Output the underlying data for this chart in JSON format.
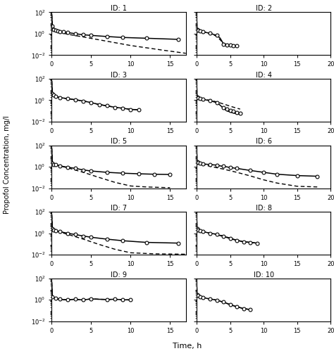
{
  "ylabel": "Propofol Concentration, mg/l",
  "xlabel": "Time, h",
  "subjects": [
    {
      "id": 1,
      "obs_t": [
        0.08,
        0.25,
        0.5,
        0.75,
        1.0,
        1.5,
        2.0,
        3.0,
        4.0,
        5.0,
        7.0,
        9.0,
        12.0,
        16.0
      ],
      "obs_c": [
        5.0,
        2.5,
        2.0,
        1.8,
        1.6,
        1.5,
        1.3,
        1.0,
        0.8,
        0.7,
        0.55,
        0.45,
        0.38,
        0.3
      ],
      "solid_t": [
        0.001,
        0.08,
        0.25,
        0.5,
        0.75,
        1.0,
        1.5,
        2.0,
        3.0,
        4.0,
        5.0,
        7.0,
        9.0,
        12.0,
        16.0
      ],
      "solid_c": [
        60.0,
        5.0,
        2.5,
        2.0,
        1.8,
        1.6,
        1.5,
        1.3,
        1.0,
        0.8,
        0.7,
        0.55,
        0.45,
        0.38,
        0.3
      ],
      "dash_t": [
        0.001,
        0.08,
        0.5,
        1.0,
        2.0,
        4.0,
        7.0,
        10.0,
        14.0,
        17.0
      ],
      "dash_c": [
        60.0,
        5.0,
        2.2,
        1.4,
        0.9,
        0.5,
        0.2,
        0.08,
        0.03,
        0.015
      ],
      "xlim": [
        0,
        17
      ]
    },
    {
      "id": 2,
      "obs_t": [
        0.08,
        0.25,
        0.5,
        1.0,
        2.0,
        3.0,
        4.0,
        4.5,
        5.0,
        5.5,
        6.0
      ],
      "obs_c": [
        2.5,
        2.2,
        1.8,
        1.5,
        1.1,
        0.7,
        0.1,
        0.095,
        0.085,
        0.078,
        0.075
      ],
      "solid_t": [
        0.001,
        0.08,
        0.25,
        0.5,
        1.0,
        2.0,
        3.0,
        3.5,
        4.0,
        4.2,
        4.5,
        4.8,
        5.0,
        5.5,
        6.0
      ],
      "solid_c": [
        50.0,
        2.5,
        2.2,
        1.8,
        1.5,
        1.1,
        0.7,
        0.4,
        0.12,
        0.1,
        0.095,
        0.09,
        0.088,
        0.082,
        0.078
      ],
      "dash_t": [
        0.001,
        0.08,
        0.5,
        1.0,
        2.0,
        3.0,
        4.0,
        4.5,
        5.0,
        5.5,
        6.0
      ],
      "dash_c": [
        50.0,
        2.5,
        2.0,
        1.6,
        1.0,
        0.6,
        0.13,
        0.1,
        0.09,
        0.082,
        0.075
      ],
      "xlim": [
        0,
        20
      ]
    },
    {
      "id": 3,
      "obs_t": [
        0.08,
        0.25,
        0.5,
        1.0,
        2.0,
        3.0,
        4.0,
        5.0,
        6.0,
        7.0,
        8.0,
        9.0,
        10.0,
        11.0
      ],
      "obs_c": [
        4.0,
        3.0,
        2.2,
        1.8,
        1.4,
        1.1,
        0.85,
        0.6,
        0.4,
        0.3,
        0.22,
        0.18,
        0.14,
        0.13
      ],
      "solid_t": [
        0.001,
        0.08,
        0.25,
        0.5,
        1.0,
        2.0,
        3.0,
        4.0,
        5.0,
        6.0,
        7.0,
        8.0,
        9.0,
        10.0,
        11.0
      ],
      "solid_c": [
        60.0,
        4.0,
        3.0,
        2.2,
        1.8,
        1.4,
        1.1,
        0.85,
        0.6,
        0.4,
        0.3,
        0.22,
        0.18,
        0.14,
        0.13
      ],
      "dash_t": [
        0.001,
        0.08,
        0.25,
        0.5,
        1.0,
        2.0,
        3.0,
        4.0,
        5.0,
        6.0,
        7.0,
        8.0,
        9.0,
        10.0,
        11.0
      ],
      "dash_c": [
        60.0,
        4.0,
        3.0,
        2.2,
        1.8,
        1.4,
        1.1,
        0.85,
        0.6,
        0.4,
        0.3,
        0.22,
        0.18,
        0.14,
        0.13
      ],
      "xlim": [
        0,
        17
      ]
    },
    {
      "id": 4,
      "obs_t": [
        0.08,
        0.25,
        0.5,
        1.0,
        2.0,
        3.0,
        4.0,
        4.5,
        5.0,
        5.5,
        6.0,
        6.5
      ],
      "obs_c": [
        2.0,
        1.8,
        1.5,
        1.2,
        0.9,
        0.6,
        0.2,
        0.15,
        0.12,
        0.09,
        0.07,
        0.06
      ],
      "solid_t": [
        0.001,
        0.08,
        0.25,
        0.5,
        1.0,
        2.0,
        3.0,
        3.5,
        4.0,
        4.3,
        4.6,
        5.0,
        5.5,
        6.0,
        6.5
      ],
      "solid_c": [
        50.0,
        2.0,
        1.8,
        1.5,
        1.2,
        0.9,
        0.6,
        0.35,
        0.18,
        0.13,
        0.1,
        0.08,
        0.065,
        0.055,
        0.048
      ],
      "dash_t": [
        0.001,
        0.08,
        0.25,
        0.5,
        1.0,
        2.0,
        3.0,
        4.0,
        5.0,
        6.0,
        6.5
      ],
      "dash_c": [
        50.0,
        2.0,
        1.8,
        1.5,
        1.2,
        1.0,
        0.7,
        0.45,
        0.28,
        0.18,
        0.15
      ],
      "xlim": [
        0,
        20
      ]
    },
    {
      "id": 5,
      "obs_t": [
        0.08,
        0.25,
        0.5,
        1.0,
        2.0,
        3.0,
        4.0,
        5.0,
        7.0,
        9.0,
        11.0,
        13.0,
        15.0
      ],
      "obs_c": [
        2.0,
        1.7,
        1.5,
        1.2,
        0.9,
        0.7,
        0.5,
        0.4,
        0.3,
        0.25,
        0.22,
        0.2,
        0.19
      ],
      "solid_t": [
        0.001,
        0.08,
        0.25,
        0.5,
        1.0,
        2.0,
        3.0,
        4.0,
        5.0,
        7.0,
        9.0,
        11.0,
        13.0,
        15.0
      ],
      "solid_c": [
        50.0,
        2.0,
        1.7,
        1.5,
        1.2,
        0.9,
        0.7,
        0.5,
        0.4,
        0.3,
        0.25,
        0.22,
        0.2,
        0.19
      ],
      "dash_t": [
        0.001,
        0.08,
        0.5,
        1.0,
        2.0,
        4.0,
        6.0,
        8.0,
        10.0,
        12.0,
        15.0
      ],
      "dash_c": [
        50.0,
        2.0,
        1.5,
        1.2,
        0.8,
        0.3,
        0.1,
        0.035,
        0.016,
        0.013,
        0.011
      ],
      "xlim": [
        0,
        17
      ]
    },
    {
      "id": 6,
      "obs_t": [
        0.08,
        0.25,
        0.5,
        1.0,
        2.0,
        3.0,
        4.0,
        5.0,
        6.0,
        8.0,
        10.0,
        12.0,
        15.0,
        18.0
      ],
      "obs_c": [
        3.0,
        2.5,
        2.2,
        1.8,
        1.6,
        1.4,
        1.1,
        0.85,
        0.7,
        0.45,
        0.3,
        0.2,
        0.15,
        0.13
      ],
      "solid_t": [
        0.001,
        0.08,
        0.25,
        0.5,
        1.0,
        2.0,
        2.5,
        3.0,
        3.5,
        4.0,
        5.0,
        6.0,
        8.0,
        10.0,
        12.0,
        15.0,
        18.0
      ],
      "solid_c": [
        60.0,
        3.0,
        2.5,
        2.2,
        1.8,
        1.6,
        1.5,
        1.4,
        1.2,
        1.1,
        0.85,
        0.7,
        0.45,
        0.3,
        0.2,
        0.15,
        0.13
      ],
      "dash_t": [
        0.001,
        0.08,
        0.5,
        1.0,
        2.0,
        4.0,
        6.0,
        8.0,
        10.0,
        12.0,
        15.0,
        18.0
      ],
      "dash_c": [
        60.0,
        3.0,
        2.0,
        1.6,
        1.1,
        0.6,
        0.3,
        0.14,
        0.06,
        0.03,
        0.015,
        0.013
      ],
      "xlim": [
        0,
        20
      ]
    },
    {
      "id": 7,
      "obs_t": [
        0.08,
        0.25,
        0.5,
        1.0,
        2.0,
        3.0,
        4.0,
        5.0,
        7.0,
        9.0,
        12.0,
        16.0
      ],
      "obs_c": [
        2.5,
        2.0,
        1.7,
        1.4,
        1.0,
        0.75,
        0.55,
        0.42,
        0.28,
        0.2,
        0.14,
        0.12
      ],
      "solid_t": [
        0.001,
        0.08,
        0.25,
        0.5,
        1.0,
        2.0,
        3.0,
        4.0,
        5.0,
        7.0,
        9.0,
        12.0,
        16.0
      ],
      "solid_c": [
        50.0,
        2.5,
        2.0,
        1.7,
        1.4,
        1.0,
        0.75,
        0.55,
        0.42,
        0.28,
        0.2,
        0.14,
        0.12
      ],
      "dash_t": [
        0.001,
        0.08,
        0.5,
        1.0,
        2.0,
        4.0,
        6.0,
        8.0,
        10.0,
        13.0,
        17.0
      ],
      "dash_c": [
        50.0,
        2.5,
        1.8,
        1.3,
        0.8,
        0.28,
        0.09,
        0.032,
        0.015,
        0.012,
        0.011
      ],
      "xlim": [
        0,
        17
      ]
    },
    {
      "id": 8,
      "obs_t": [
        0.08,
        0.25,
        0.5,
        1.0,
        2.0,
        3.0,
        4.0,
        5.0,
        6.0,
        7.0,
        8.0,
        9.0
      ],
      "obs_c": [
        2.5,
        2.0,
        1.7,
        1.4,
        1.0,
        0.8,
        0.55,
        0.35,
        0.22,
        0.16,
        0.14,
        0.12
      ],
      "solid_t": [
        0.001,
        0.08,
        0.25,
        0.5,
        1.0,
        2.0,
        3.0,
        3.5,
        4.0,
        4.5,
        5.0,
        5.5,
        6.0,
        7.0,
        7.5,
        8.0,
        8.5,
        9.0
      ],
      "solid_c": [
        50.0,
        2.5,
        2.0,
        1.7,
        1.4,
        1.0,
        0.8,
        0.6,
        0.52,
        0.4,
        0.33,
        0.26,
        0.22,
        0.16,
        0.15,
        0.14,
        0.13,
        0.12
      ],
      "dash_t": [
        0.001,
        0.08,
        0.25,
        0.5,
        1.0,
        2.0,
        3.0,
        4.0,
        5.0,
        6.0,
        7.0,
        8.0,
        9.0
      ],
      "dash_c": [
        50.0,
        2.5,
        2.0,
        1.7,
        1.4,
        1.0,
        0.8,
        0.55,
        0.35,
        0.22,
        0.16,
        0.14,
        0.12
      ],
      "xlim": [
        0,
        20
      ]
    },
    {
      "id": 9,
      "obs_t": [
        0.08,
        0.5,
        1.0,
        2.0,
        3.0,
        4.0,
        5.0,
        7.0,
        8.0,
        9.0,
        10.0
      ],
      "obs_c": [
        1.8,
        1.3,
        1.1,
        1.0,
        1.1,
        0.95,
        1.2,
        1.05,
        1.1,
        1.0,
        0.95
      ],
      "solid_t": [
        0.001,
        0.08,
        0.5,
        1.0,
        1.5,
        2.0,
        2.5,
        3.0,
        4.0,
        5.0,
        6.0,
        7.0,
        8.0,
        9.0,
        10.0
      ],
      "solid_c": [
        40.0,
        1.8,
        1.3,
        1.1,
        1.0,
        1.0,
        1.05,
        1.1,
        0.95,
        1.2,
        1.1,
        1.05,
        1.1,
        1.0,
        0.95
      ],
      "dash_t": [
        0.001,
        0.08,
        0.5,
        1.0,
        1.5,
        2.0,
        2.5,
        3.0,
        4.0,
        5.0,
        6.0,
        7.0,
        8.0,
        9.0,
        10.0
      ],
      "dash_c": [
        40.0,
        1.8,
        1.3,
        1.1,
        1.0,
        1.0,
        1.05,
        1.1,
        0.95,
        1.2,
        1.1,
        1.05,
        1.1,
        1.0,
        0.95
      ],
      "xlim": [
        0,
        17
      ]
    },
    {
      "id": 10,
      "obs_t": [
        0.08,
        0.25,
        0.5,
        1.0,
        2.0,
        3.0,
        4.0,
        5.0,
        6.0,
        7.0,
        8.0
      ],
      "obs_c": [
        3.0,
        2.5,
        2.0,
        1.6,
        1.2,
        0.9,
        0.6,
        0.35,
        0.22,
        0.15,
        0.12
      ],
      "solid_t": [
        0.001,
        0.08,
        0.25,
        0.5,
        1.0,
        1.5,
        2.0,
        2.5,
        3.0,
        4.0,
        5.0,
        6.0,
        7.0,
        8.0
      ],
      "solid_c": [
        60.0,
        3.0,
        2.5,
        2.0,
        1.6,
        1.35,
        1.15,
        1.05,
        0.9,
        0.6,
        0.35,
        0.22,
        0.15,
        0.12
      ],
      "dash_t": [
        0.001,
        0.08,
        0.25,
        0.5,
        1.0,
        1.5,
        2.0,
        2.5,
        3.0,
        4.0,
        5.0,
        6.0,
        7.0,
        8.0
      ],
      "dash_c": [
        60.0,
        3.0,
        2.5,
        2.0,
        1.6,
        1.35,
        1.15,
        1.05,
        0.9,
        0.6,
        0.35,
        0.22,
        0.15,
        0.12
      ],
      "xlim": [
        0,
        20
      ]
    }
  ]
}
